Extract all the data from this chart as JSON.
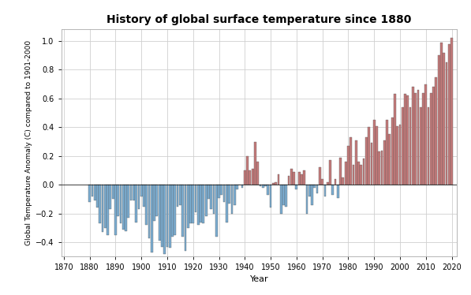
{
  "title": "History of global surface temperature since 1880",
  "xlabel": "Year",
  "ylabel": "Global Temperature Anomaly (C) compared to 1901-2000",
  "title_color": "#000000",
  "bar_color_neg": "#7BADD1",
  "bar_color_pos": "#C47A7A",
  "bar_edgecolor": "#555555",
  "background_color": "#ffffff",
  "grid_color": "#d0d0d0",
  "ylim": [
    -0.5,
    1.08
  ],
  "xlim": [
    1869,
    2022
  ],
  "yticks": [
    -0.4,
    -0.2,
    0.0,
    0.2,
    0.4,
    0.6,
    0.8,
    1.0
  ],
  "xticks": [
    1870,
    1880,
    1890,
    1900,
    1910,
    1920,
    1930,
    1940,
    1950,
    1960,
    1970,
    1980,
    1990,
    2000,
    2010,
    2020
  ],
  "years": [
    1880,
    1881,
    1882,
    1883,
    1884,
    1885,
    1886,
    1887,
    1888,
    1889,
    1890,
    1891,
    1892,
    1893,
    1894,
    1895,
    1896,
    1897,
    1898,
    1899,
    1900,
    1901,
    1902,
    1903,
    1904,
    1905,
    1906,
    1907,
    1908,
    1909,
    1910,
    1911,
    1912,
    1913,
    1914,
    1915,
    1916,
    1917,
    1918,
    1919,
    1920,
    1921,
    1922,
    1923,
    1924,
    1925,
    1926,
    1927,
    1928,
    1929,
    1930,
    1931,
    1932,
    1933,
    1934,
    1935,
    1936,
    1937,
    1938,
    1939,
    1940,
    1941,
    1942,
    1943,
    1944,
    1945,
    1946,
    1947,
    1948,
    1949,
    1950,
    1951,
    1952,
    1953,
    1954,
    1955,
    1956,
    1957,
    1958,
    1959,
    1960,
    1961,
    1962,
    1963,
    1964,
    1965,
    1966,
    1967,
    1968,
    1969,
    1970,
    1971,
    1972,
    1973,
    1974,
    1975,
    1976,
    1977,
    1978,
    1979,
    1980,
    1981,
    1982,
    1983,
    1984,
    1985,
    1986,
    1987,
    1988,
    1989,
    1990,
    1991,
    1992,
    1993,
    1994,
    1995,
    1996,
    1997,
    1998,
    1999,
    2000,
    2001,
    2002,
    2003,
    2004,
    2005,
    2006,
    2007,
    2008,
    2009,
    2010,
    2011,
    2012,
    2013,
    2014,
    2015,
    2016,
    2017,
    2018,
    2019,
    2020
  ],
  "anomalies": [
    -0.12,
    -0.08,
    -0.11,
    -0.16,
    -0.27,
    -0.33,
    -0.3,
    -0.35,
    -0.17,
    -0.1,
    -0.35,
    -0.22,
    -0.27,
    -0.31,
    -0.32,
    -0.23,
    -0.11,
    -0.11,
    -0.26,
    -0.17,
    -0.08,
    -0.15,
    -0.28,
    -0.37,
    -0.47,
    -0.25,
    -0.22,
    -0.39,
    -0.43,
    -0.48,
    -0.43,
    -0.44,
    -0.36,
    -0.35,
    -0.15,
    -0.14,
    -0.36,
    -0.46,
    -0.3,
    -0.27,
    -0.27,
    -0.19,
    -0.28,
    -0.26,
    -0.27,
    -0.22,
    -0.1,
    -0.17,
    -0.2,
    -0.36,
    -0.09,
    -0.07,
    -0.12,
    -0.26,
    -0.13,
    -0.2,
    -0.14,
    -0.03,
    -0.0,
    -0.02,
    0.1,
    0.2,
    0.1,
    0.11,
    0.3,
    0.16,
    -0.01,
    -0.02,
    -0.01,
    -0.07,
    -0.16,
    0.01,
    0.02,
    0.07,
    -0.2,
    -0.14,
    -0.15,
    0.06,
    0.11,
    0.09,
    -0.03,
    0.09,
    0.07,
    0.1,
    -0.2,
    -0.08,
    -0.14,
    -0.02,
    -0.06,
    0.12,
    0.04,
    -0.08,
    0.02,
    0.17,
    -0.07,
    0.04,
    -0.09,
    0.19,
    0.05,
    0.16,
    0.27,
    0.33,
    0.14,
    0.31,
    0.16,
    0.14,
    0.18,
    0.33,
    0.4,
    0.29,
    0.45,
    0.41,
    0.23,
    0.24,
    0.31,
    0.45,
    0.35,
    0.47,
    0.63,
    0.41,
    0.42,
    0.54,
    0.63,
    0.62,
    0.54,
    0.68,
    0.64,
    0.66,
    0.54,
    0.64,
    0.7,
    0.54,
    0.64,
    0.68,
    0.75,
    0.9,
    0.99,
    0.92,
    0.85,
    0.98,
    1.02
  ]
}
